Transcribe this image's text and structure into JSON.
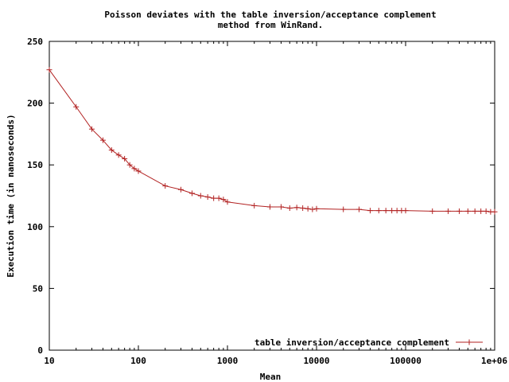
{
  "chart_data": {
    "type": "line",
    "title_line1": "Poisson deviates with the table inversion/acceptance complement",
    "title_line2": "method from WinRand.",
    "xlabel": "Mean",
    "ylabel": "Execution time (in nanoseconds)",
    "x_scale": "log",
    "xlim": [
      10,
      1000000
    ],
    "ylim": [
      0,
      250
    ],
    "y_ticks": [
      0,
      50,
      100,
      150,
      200,
      250
    ],
    "x_ticks": [
      10,
      100,
      1000,
      10000,
      100000,
      1000000
    ],
    "y_tick_labels": [
      "0",
      "50",
      "100",
      "150",
      "200",
      "250"
    ],
    "x_tick_labels": [
      "10",
      "100",
      "1000",
      "10000",
      "100000",
      "1e+06"
    ],
    "grid": false,
    "legend_position": "bottom-right",
    "series": [
      {
        "name": "table inversion/acceptance complement",
        "color": "#b22222",
        "x": [
          10,
          20,
          30,
          40,
          50,
          60,
          70,
          80,
          90,
          100,
          200,
          300,
          400,
          500,
          600,
          700,
          800,
          900,
          1000,
          2000,
          3000,
          4000,
          5000,
          6000,
          7000,
          8000,
          9000,
          10000,
          20000,
          30000,
          40000,
          50000,
          60000,
          70000,
          80000,
          90000,
          100000,
          200000,
          300000,
          400000,
          500000,
          600000,
          700000,
          800000,
          900000,
          1000000
        ],
        "y": [
          227,
          197,
          179,
          170,
          162,
          158,
          155,
          150,
          147,
          145,
          133,
          130,
          127,
          125,
          124,
          123,
          123,
          122,
          120,
          117,
          116,
          116,
          115,
          115.5,
          115,
          114.5,
          114,
          114.5,
          114,
          114,
          113,
          113,
          113,
          113,
          113,
          113,
          113,
          112.5,
          112.5,
          112.5,
          112.5,
          112.5,
          112.5,
          112.5,
          112,
          112
        ]
      }
    ]
  }
}
